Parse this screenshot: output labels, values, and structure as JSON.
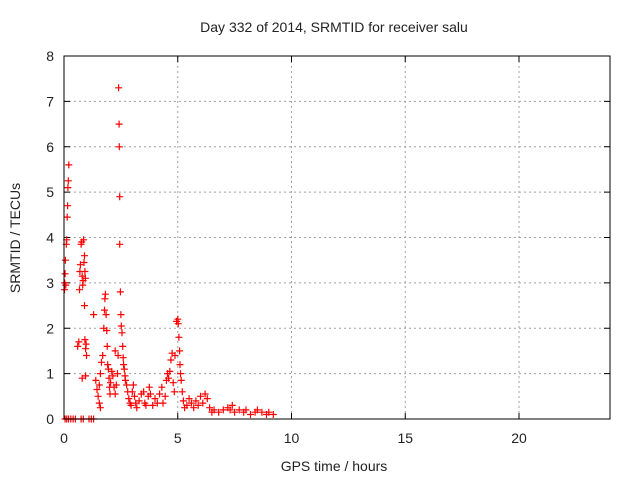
{
  "chart_data": {
    "type": "scatter",
    "title": "Day 332 of 2014, SRMTID for receiver salu",
    "xlabel": "GPS time / hours",
    "ylabel": "SRMTID / TECUs",
    "xlim": [
      0,
      24
    ],
    "ylim": [
      0,
      8
    ],
    "x_ticks": [
      0,
      5,
      10,
      15,
      20
    ],
    "y_ticks": [
      0,
      1,
      2,
      3,
      4,
      5,
      6,
      7,
      8
    ],
    "grid": true,
    "marker": "+",
    "color": "#ff0000",
    "series": [
      {
        "name": "SRMTID",
        "points": [
          [
            0.05,
            0.0
          ],
          [
            0.12,
            0.0
          ],
          [
            0.2,
            0.0
          ],
          [
            0.3,
            0.0
          ],
          [
            0.4,
            0.0
          ],
          [
            0.5,
            0.0
          ],
          [
            0.75,
            0.0
          ],
          [
            0.85,
            0.0
          ],
          [
            1.1,
            0.0
          ],
          [
            1.2,
            0.0
          ],
          [
            1.3,
            0.0
          ],
          [
            0.02,
            2.85
          ],
          [
            0.03,
            3.0
          ],
          [
            0.05,
            3.2
          ],
          [
            0.06,
            3.5
          ],
          [
            0.08,
            2.95
          ],
          [
            0.1,
            3.85
          ],
          [
            0.12,
            3.95
          ],
          [
            0.14,
            4.45
          ],
          [
            0.16,
            4.7
          ],
          [
            0.17,
            5.1
          ],
          [
            0.19,
            5.25
          ],
          [
            0.21,
            5.6
          ],
          [
            0.6,
            1.6
          ],
          [
            0.65,
            1.7
          ],
          [
            0.68,
            2.85
          ],
          [
            0.7,
            3.25
          ],
          [
            0.72,
            3.4
          ],
          [
            0.75,
            3.85
          ],
          [
            0.78,
            3.9
          ],
          [
            0.8,
            3.15
          ],
          [
            0.82,
            2.95
          ],
          [
            0.84,
            3.05
          ],
          [
            0.86,
            3.95
          ],
          [
            0.88,
            3.45
          ],
          [
            0.9,
            3.6
          ],
          [
            0.92,
            3.25
          ],
          [
            0.94,
            3.1
          ],
          [
            0.9,
            2.5
          ],
          [
            0.92,
            1.75
          ],
          [
            0.95,
            1.55
          ],
          [
            0.97,
            1.65
          ],
          [
            0.99,
            1.4
          ],
          [
            0.8,
            0.9
          ],
          [
            0.95,
            0.95
          ],
          [
            1.3,
            2.3
          ],
          [
            1.4,
            0.85
          ],
          [
            1.45,
            0.65
          ],
          [
            1.5,
            0.5
          ],
          [
            1.55,
            0.35
          ],
          [
            1.6,
            0.25
          ],
          [
            1.55,
            0.75
          ],
          [
            1.6,
            1.0
          ],
          [
            1.65,
            1.25
          ],
          [
            1.7,
            1.4
          ],
          [
            1.75,
            2.0
          ],
          [
            1.78,
            2.4
          ],
          [
            1.8,
            2.65
          ],
          [
            1.82,
            2.75
          ],
          [
            1.85,
            2.3
          ],
          [
            1.88,
            1.95
          ],
          [
            1.9,
            1.6
          ],
          [
            1.92,
            1.2
          ],
          [
            1.95,
            1.1
          ],
          [
            1.98,
            0.9
          ],
          [
            2.0,
            0.7
          ],
          [
            2.02,
            0.55
          ],
          [
            2.05,
            0.8
          ],
          [
            2.1,
            1.05
          ],
          [
            2.15,
            0.95
          ],
          [
            2.2,
            0.7
          ],
          [
            2.25,
            0.55
          ],
          [
            2.3,
            0.75
          ],
          [
            2.35,
            1.0
          ],
          [
            2.38,
            1.4
          ],
          [
            2.25,
            1.5
          ],
          [
            2.4,
            7.3
          ],
          [
            2.42,
            6.5
          ],
          [
            2.43,
            6.0
          ],
          [
            2.45,
            4.9
          ],
          [
            2.45,
            3.85
          ],
          [
            2.48,
            2.8
          ],
          [
            2.5,
            2.3
          ],
          [
            2.52,
            2.05
          ],
          [
            2.55,
            1.9
          ],
          [
            2.58,
            1.6
          ],
          [
            2.6,
            1.35
          ],
          [
            2.62,
            1.2
          ],
          [
            2.65,
            1.1
          ],
          [
            2.68,
            0.95
          ],
          [
            2.7,
            0.85
          ],
          [
            2.75,
            0.75
          ],
          [
            2.8,
            0.6
          ],
          [
            2.85,
            0.45
          ],
          [
            2.9,
            0.35
          ],
          [
            2.95,
            0.3
          ],
          [
            3.0,
            0.6
          ],
          [
            3.05,
            0.75
          ],
          [
            3.1,
            0.5
          ],
          [
            3.15,
            0.35
          ],
          [
            3.2,
            0.25
          ],
          [
            3.3,
            0.4
          ],
          [
            3.4,
            0.55
          ],
          [
            3.5,
            0.6
          ],
          [
            3.55,
            0.35
          ],
          [
            3.6,
            0.3
          ],
          [
            3.7,
            0.5
          ],
          [
            3.75,
            0.7
          ],
          [
            3.8,
            0.55
          ],
          [
            3.9,
            0.3
          ],
          [
            4.0,
            0.45
          ],
          [
            4.1,
            0.35
          ],
          [
            4.2,
            0.55
          ],
          [
            4.3,
            0.7
          ],
          [
            4.35,
            0.35
          ],
          [
            4.45,
            0.5
          ],
          [
            4.5,
            0.85
          ],
          [
            4.55,
            1.0
          ],
          [
            4.6,
            0.9
          ],
          [
            4.65,
            1.05
          ],
          [
            4.7,
            1.3
          ],
          [
            4.75,
            1.45
          ],
          [
            4.8,
            0.8
          ],
          [
            4.85,
            0.6
          ],
          [
            4.88,
            1.4
          ],
          [
            4.95,
            2.15
          ],
          [
            5.0,
            2.2
          ],
          [
            5.02,
            2.1
          ],
          [
            5.05,
            1.8
          ],
          [
            5.08,
            1.5
          ],
          [
            5.1,
            1.2
          ],
          [
            5.12,
            1.0
          ],
          [
            5.15,
            0.85
          ],
          [
            5.2,
            0.6
          ],
          [
            5.25,
            0.4
          ],
          [
            5.3,
            0.25
          ],
          [
            5.4,
            0.3
          ],
          [
            5.5,
            0.45
          ],
          [
            5.6,
            0.35
          ],
          [
            5.7,
            0.25
          ],
          [
            5.8,
            0.4
          ],
          [
            5.9,
            0.3
          ],
          [
            6.0,
            0.5
          ],
          [
            6.1,
            0.35
          ],
          [
            6.2,
            0.55
          ],
          [
            6.3,
            0.45
          ],
          [
            6.4,
            0.25
          ],
          [
            6.5,
            0.15
          ],
          [
            6.6,
            0.2
          ],
          [
            6.8,
            0.15
          ],
          [
            7.0,
            0.2
          ],
          [
            7.2,
            0.25
          ],
          [
            7.3,
            0.2
          ],
          [
            7.4,
            0.3
          ],
          [
            7.5,
            0.15
          ],
          [
            7.7,
            0.2
          ],
          [
            7.9,
            0.15
          ],
          [
            8.0,
            0.2
          ],
          [
            8.2,
            0.1
          ],
          [
            8.4,
            0.15
          ],
          [
            8.5,
            0.2
          ],
          [
            8.7,
            0.15
          ],
          [
            8.9,
            0.1
          ],
          [
            9.0,
            0.15
          ],
          [
            9.2,
            0.1
          ]
        ]
      }
    ]
  }
}
